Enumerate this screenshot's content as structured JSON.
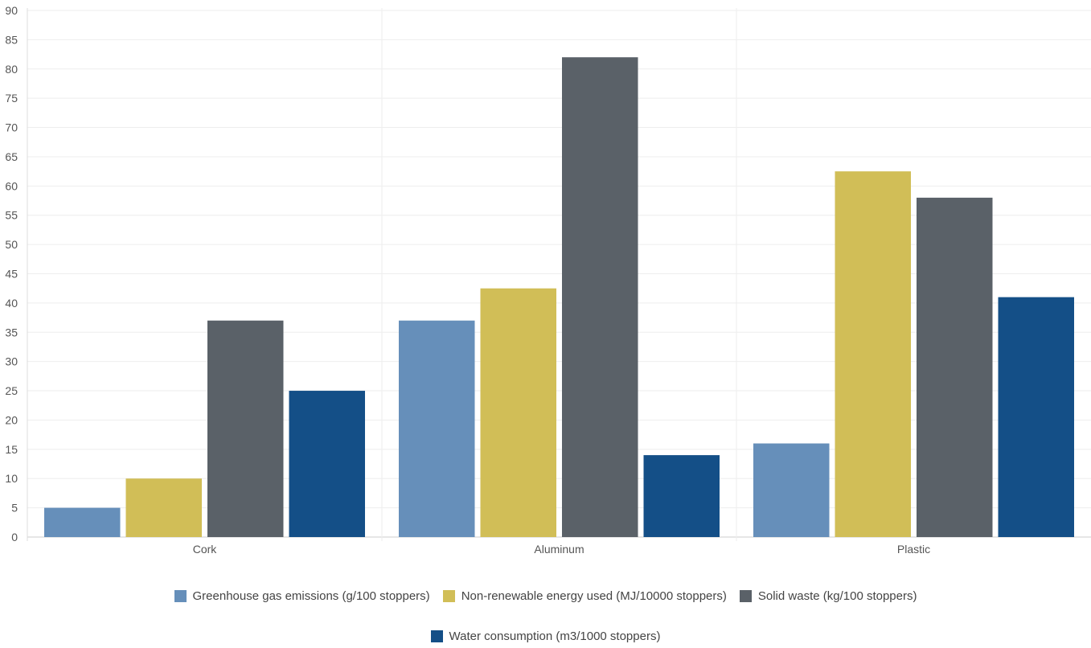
{
  "chart_data": {
    "type": "bar",
    "title": "",
    "xlabel": "",
    "ylabel": "",
    "categories": [
      "Cork",
      "Aluminum",
      "Plastic"
    ],
    "ylim": [
      0,
      90
    ],
    "yticks": [
      0,
      5,
      10,
      15,
      20,
      25,
      30,
      35,
      40,
      45,
      50,
      55,
      60,
      65,
      70,
      75,
      80,
      85,
      90
    ],
    "grid": true,
    "legend_position": "bottom",
    "series": [
      {
        "name": "Greenhouse gas emissions (g/100 stoppers)",
        "color": "#668fba",
        "values": [
          5,
          37,
          16
        ]
      },
      {
        "name": "Non-renewable energy used (MJ/10000 stoppers)",
        "color": "#d1be57",
        "values": [
          10,
          42.5,
          62.5
        ]
      },
      {
        "name": "Solid waste (kg/100 stoppers)",
        "color": "#5a6168",
        "values": [
          37,
          82,
          58
        ]
      },
      {
        "name": "Water consumption (m3/1000 stoppers)",
        "color": "#144f87",
        "values": [
          25,
          14,
          41
        ]
      }
    ]
  }
}
